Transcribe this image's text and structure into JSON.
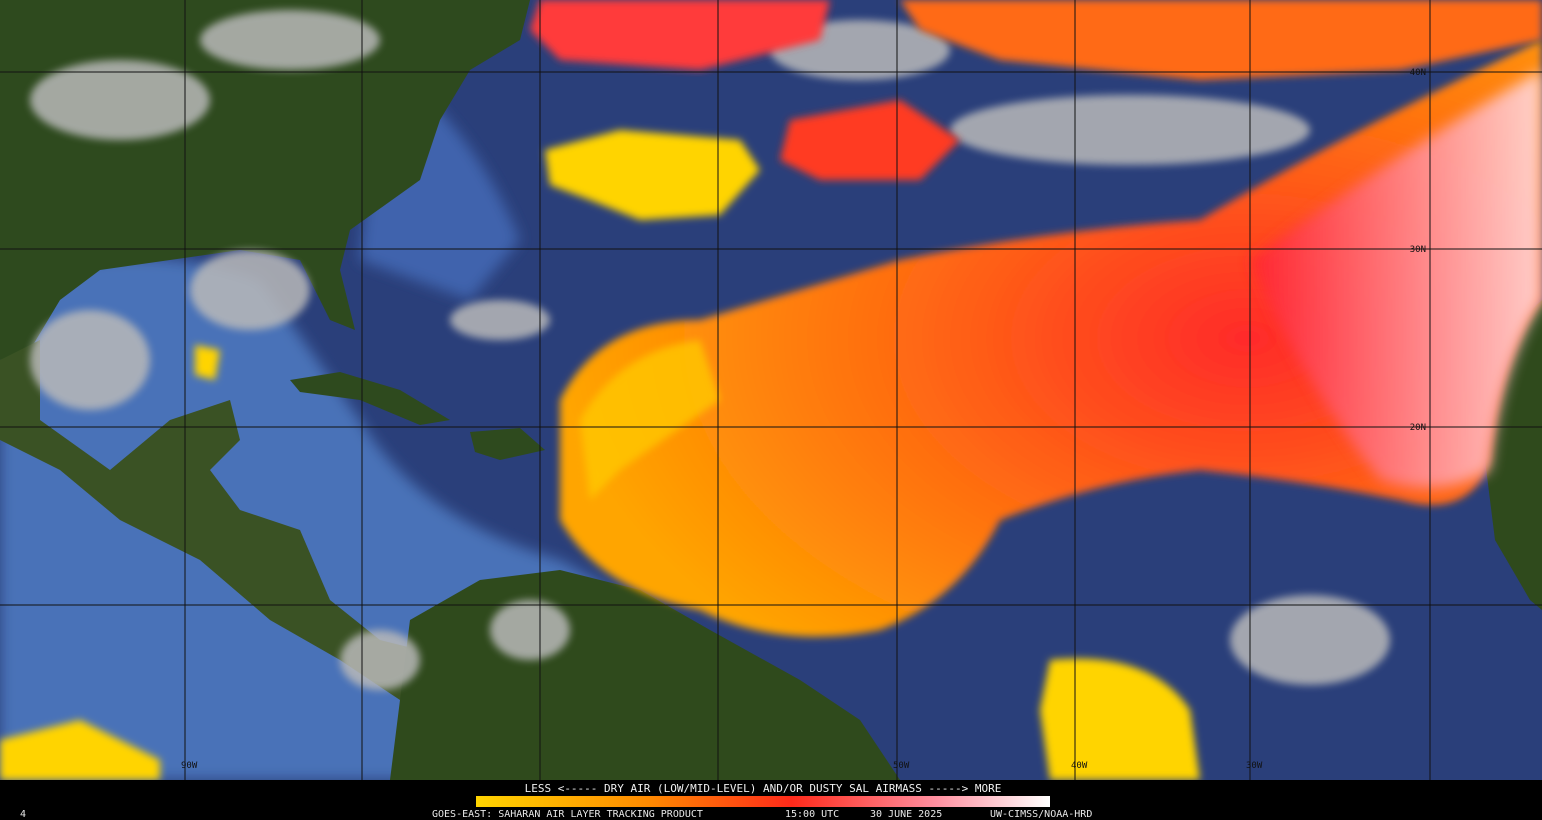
{
  "map": {
    "lat_labels": [
      "40N",
      "30N",
      "20N"
    ],
    "lon_labels": [
      "90W",
      "50W",
      "40W",
      "30W"
    ]
  },
  "legend": {
    "text": "LESS <----- DRY AIR (LOW/MID-LEVEL) AND/OR DUSTY SAL AIRMASS -----> MORE"
  },
  "footer": {
    "product": "GOES-EAST: SAHARAN AIR LAYER TRACKING PRODUCT",
    "time": "15:00 UTC",
    "date": "30 JUNE 2025",
    "credit": "UW-CIMSS/NOAA-HRD",
    "frame": "4"
  }
}
